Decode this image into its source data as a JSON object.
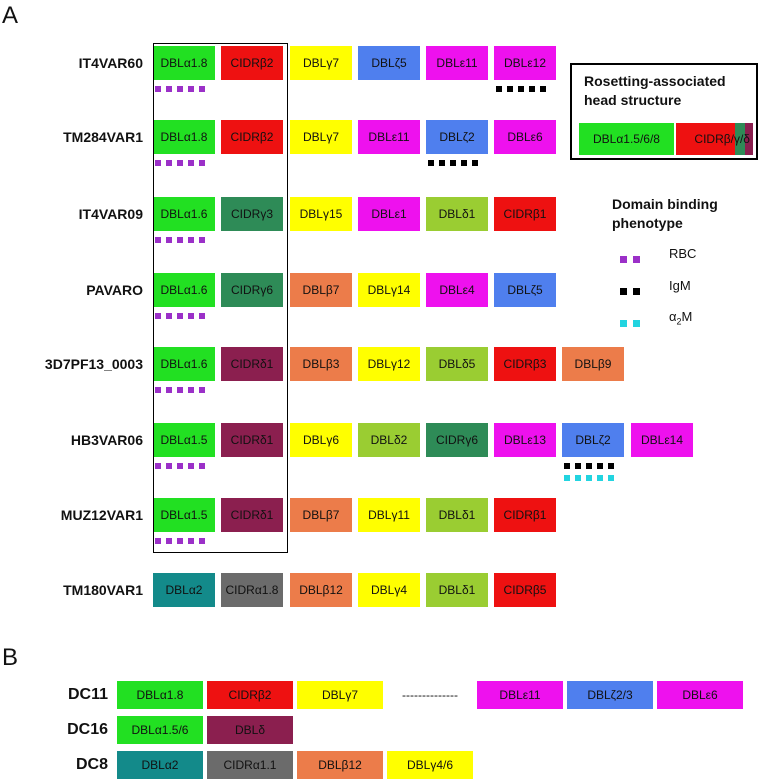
{
  "panels": {
    "a": "A",
    "b": "B"
  },
  "colors": {
    "dbla_green": "#22e022",
    "cidr_red": "#ee1111",
    "dbl_yellow": "#ffff00",
    "dbl_blue": "#4f7fee",
    "dbl_magenta": "#ee11ee",
    "cidr_dkgreen": "#2e8b57",
    "dbld_lime": "#9acd32",
    "dblb_orange": "#ec7c4a",
    "cidr_maroon": "#8b1f4f",
    "dbla2_teal": "#138a8a",
    "cidra_gray": "#6b6b6b",
    "rbc_purple": "#9b30c8",
    "igm_black": "#000000",
    "a2m_cyan": "#22d4e0"
  },
  "rows": [
    {
      "label": "IT4VAR60",
      "domains": [
        {
          "text": "DBLα1.8",
          "color": "#22e022"
        },
        {
          "text": "CIDRβ2",
          "color": "#ee1111"
        },
        {
          "text": "DBLγ7",
          "color": "#ffff00"
        },
        {
          "text": "DBLζ5",
          "color": "#4f7fee"
        },
        {
          "text": "DBLε11",
          "color": "#ee11ee"
        },
        {
          "text": "DBLε12",
          "color": "#ee11ee"
        }
      ],
      "dots": [
        {
          "pos": 0,
          "color": "#9b30c8"
        },
        {
          "pos": 5,
          "color": "#000000"
        }
      ]
    },
    {
      "label": "TM284VAR1",
      "domains": [
        {
          "text": "DBLα1.8",
          "color": "#22e022"
        },
        {
          "text": "CIDRβ2",
          "color": "#ee1111"
        },
        {
          "text": "DBLγ7",
          "color": "#ffff00"
        },
        {
          "text": "DBLε11",
          "color": "#ee11ee"
        },
        {
          "text": "DBLζ2",
          "color": "#4f7fee"
        },
        {
          "text": "DBLε6",
          "color": "#ee11ee"
        }
      ],
      "dots": [
        {
          "pos": 0,
          "color": "#9b30c8"
        },
        {
          "pos": 4,
          "color": "#000000"
        }
      ]
    },
    {
      "label": "IT4VAR09",
      "domains": [
        {
          "text": "DBLα1.6",
          "color": "#22e022"
        },
        {
          "text": "CIDRγ3",
          "color": "#2e8b57"
        },
        {
          "text": "DBLγ15",
          "color": "#ffff00"
        },
        {
          "text": "DBLε1",
          "color": "#ee11ee"
        },
        {
          "text": "DBLδ1",
          "color": "#9acd32"
        },
        {
          "text": "CIDRβ1",
          "color": "#ee1111"
        }
      ],
      "dots": [
        {
          "pos": 0,
          "color": "#9b30c8"
        }
      ]
    },
    {
      "label": "PAVARO",
      "domains": [
        {
          "text": "DBLα1.6",
          "color": "#22e022"
        },
        {
          "text": "CIDRγ6",
          "color": "#2e8b57"
        },
        {
          "text": "DBLβ7",
          "color": "#ec7c4a"
        },
        {
          "text": "DBLγ14",
          "color": "#ffff00"
        },
        {
          "text": "DBLε4",
          "color": "#ee11ee"
        },
        {
          "text": "DBLζ5",
          "color": "#4f7fee"
        }
      ],
      "dots": [
        {
          "pos": 0,
          "color": "#9b30c8"
        }
      ]
    },
    {
      "label": "3D7PF13_0003",
      "domains": [
        {
          "text": "DBLα1.6",
          "color": "#22e022"
        },
        {
          "text": "CIDRδ1",
          "color": "#8b1f4f"
        },
        {
          "text": "DBLβ3",
          "color": "#ec7c4a"
        },
        {
          "text": "DBLγ12",
          "color": "#ffff00"
        },
        {
          "text": "DBLδ5",
          "color": "#9acd32"
        },
        {
          "text": "CIDRβ3",
          "color": "#ee1111"
        },
        {
          "text": "DBLβ9",
          "color": "#ec7c4a"
        }
      ],
      "dots": [
        {
          "pos": 0,
          "color": "#9b30c8"
        }
      ]
    },
    {
      "label": "HB3VAR06",
      "domains": [
        {
          "text": "DBLα1.5",
          "color": "#22e022"
        },
        {
          "text": "CIDRδ1",
          "color": "#8b1f4f"
        },
        {
          "text": "DBLγ6",
          "color": "#ffff00"
        },
        {
          "text": "DBLδ2",
          "color": "#9acd32"
        },
        {
          "text": "CIDRγ6",
          "color": "#2e8b57"
        },
        {
          "text": "DBLε13",
          "color": "#ee11ee"
        },
        {
          "text": "DBLζ2",
          "color": "#4f7fee"
        },
        {
          "text": "DBLε14",
          "color": "#ee11ee"
        }
      ],
      "dots": [
        {
          "pos": 0,
          "color": "#9b30c8"
        },
        {
          "pos": 6,
          "color": "#000000"
        },
        {
          "pos": 6,
          "color": "#22d4e0",
          "second": true
        }
      ]
    },
    {
      "label": "MUZ12VAR1",
      "domains": [
        {
          "text": "DBLα1.5",
          "color": "#22e022"
        },
        {
          "text": "CIDRδ1",
          "color": "#8b1f4f"
        },
        {
          "text": "DBLβ7",
          "color": "#ec7c4a"
        },
        {
          "text": "DBLγ11",
          "color": "#ffff00"
        },
        {
          "text": "DBLδ1",
          "color": "#9acd32"
        },
        {
          "text": "CIDRβ1",
          "color": "#ee1111"
        }
      ],
      "dots": [
        {
          "pos": 0,
          "color": "#9b30c8"
        }
      ]
    },
    {
      "label": "TM180VAR1",
      "domains": [
        {
          "text": "DBLα2",
          "color": "#138a8a"
        },
        {
          "text": "CIDRα1.8",
          "color": "#6b6b6b"
        },
        {
          "text": "DBLβ12",
          "color": "#ec7c4a"
        },
        {
          "text": "DBLγ4",
          "color": "#ffff00"
        },
        {
          "text": "DBLδ1",
          "color": "#9acd32"
        },
        {
          "text": "CIDRβ5",
          "color": "#ee1111"
        }
      ],
      "dots": []
    }
  ],
  "legend": {
    "title_line1": "Rosetting-associated",
    "title_line2": "head structure",
    "dbla": "DBLα1.5/6/8",
    "cidr": "CIDRβ/γ/δ",
    "pheno_title_line1": "Domain binding",
    "pheno_title_line2": "phenotype",
    "rbc": "RBC",
    "igm": "IgM",
    "a2m_base": "α",
    "a2m_sub": "2",
    "a2m_tail": "M"
  },
  "dc": [
    {
      "label": "DC11",
      "domains": [
        {
          "text": "DBLα1.8",
          "color": "#22e022"
        },
        {
          "text": "CIDRβ2",
          "color": "#ee1111"
        },
        {
          "text": "DBLγ7",
          "color": "#ffff00"
        },
        {
          "text": "--------------",
          "color": "none"
        },
        {
          "text": "DBLε11",
          "color": "#ee11ee"
        },
        {
          "text": "DBLζ2/3",
          "color": "#4f7fee"
        },
        {
          "text": "DBLε6",
          "color": "#ee11ee"
        }
      ]
    },
    {
      "label": "DC16",
      "domains": [
        {
          "text": "DBLα1.5/6",
          "color": "#22e022"
        },
        {
          "text": "DBLδ",
          "color": "#8b1f4f"
        }
      ]
    },
    {
      "label": "DC8",
      "domains": [
        {
          "text": "DBLα2",
          "color": "#138a8a"
        },
        {
          "text": "CIDRα1.1",
          "color": "#6b6b6b"
        },
        {
          "text": "DBLβ12",
          "color": "#ec7c4a"
        },
        {
          "text": "DBLγ4/6",
          "color": "#ffff00"
        }
      ]
    }
  ]
}
